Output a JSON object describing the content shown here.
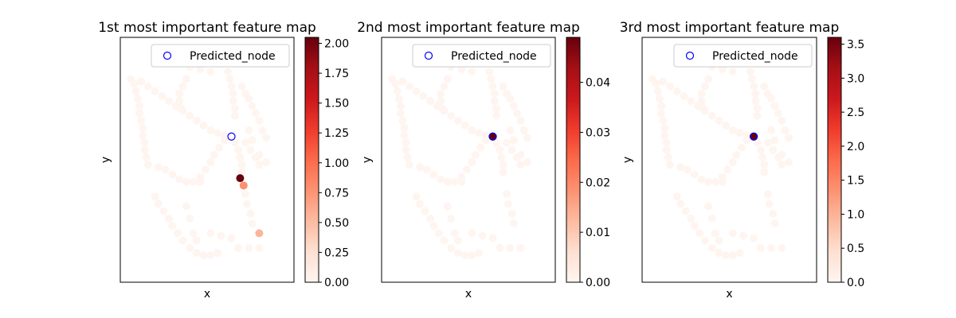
{
  "chart_data": [
    {
      "type": "scatter",
      "title": "1st most important feature map",
      "xlabel": "x",
      "ylabel": "y",
      "legend": {
        "label": "Predicted_node",
        "placement": "top-right"
      },
      "colorbar": {
        "colormap": "Reds",
        "range": [
          0,
          2.05
        ],
        "ticks": [
          "0.00",
          "0.25",
          "0.50",
          "0.75",
          "1.00",
          "1.25",
          "1.50",
          "1.75",
          "2.00"
        ]
      },
      "predicted_node": {
        "x": 0.64,
        "y": 0.595
      },
      "highlight_points": [
        {
          "x": 0.69,
          "y": 0.425,
          "value": 2.05
        },
        {
          "x": 0.71,
          "y": 0.395,
          "value": 0.78
        },
        {
          "x": 0.8,
          "y": 0.2,
          "value": 0.55
        }
      ]
    },
    {
      "type": "scatter",
      "title": "2nd most important feature map",
      "xlabel": "x",
      "ylabel": "y",
      "legend": {
        "label": "Predicted_node",
        "placement": "top-right"
      },
      "colorbar": {
        "colormap": "Reds",
        "range": [
          0,
          0.049
        ],
        "ticks": [
          "0.00",
          "0.01",
          "0.02",
          "0.03",
          "0.04"
        ]
      },
      "predicted_node": {
        "x": 0.64,
        "y": 0.595
      },
      "highlight_points": [
        {
          "x": 0.64,
          "y": 0.595,
          "value": 0.049
        }
      ]
    },
    {
      "type": "scatter",
      "title": "3rd most important feature map",
      "xlabel": "x",
      "ylabel": "y",
      "legend": {
        "label": "Predicted_node",
        "placement": "top-right"
      },
      "colorbar": {
        "colormap": "Reds",
        "range": [
          0,
          3.6
        ],
        "ticks": [
          "0.0",
          "0.5",
          "1.0",
          "1.5",
          "2.0",
          "2.5",
          "3.0",
          "3.5"
        ]
      },
      "predicted_node": {
        "x": 0.64,
        "y": 0.595
      },
      "highlight_points": [
        {
          "x": 0.64,
          "y": 0.595,
          "value": 3.6
        }
      ]
    }
  ],
  "base_nodes": {
    "value": 0,
    "points": [
      [
        0.06,
        0.83
      ],
      [
        0.08,
        0.81
      ],
      [
        0.09,
        0.78
      ],
      [
        0.1,
        0.75
      ],
      [
        0.11,
        0.72
      ],
      [
        0.11,
        0.69
      ],
      [
        0.12,
        0.66
      ],
      [
        0.13,
        0.63
      ],
      [
        0.13,
        0.6
      ],
      [
        0.14,
        0.57
      ],
      [
        0.14,
        0.54
      ],
      [
        0.15,
        0.51
      ],
      [
        0.16,
        0.48
      ],
      [
        0.12,
        0.82
      ],
      [
        0.16,
        0.8
      ],
      [
        0.2,
        0.78
      ],
      [
        0.24,
        0.76
      ],
      [
        0.28,
        0.74
      ],
      [
        0.32,
        0.72
      ],
      [
        0.36,
        0.7
      ],
      [
        0.4,
        0.68
      ],
      [
        0.44,
        0.66
      ],
      [
        0.48,
        0.64
      ],
      [
        0.52,
        0.62
      ],
      [
        0.56,
        0.61
      ],
      [
        0.6,
        0.6
      ],
      [
        0.66,
        0.57
      ],
      [
        0.68,
        0.54
      ],
      [
        0.69,
        0.51
      ],
      [
        0.7,
        0.48
      ],
      [
        0.7,
        0.45
      ],
      [
        0.72,
        0.57
      ],
      [
        0.75,
        0.54
      ],
      [
        0.78,
        0.51
      ],
      [
        0.8,
        0.48
      ],
      [
        0.6,
        0.58
      ],
      [
        0.57,
        0.55
      ],
      [
        0.54,
        0.52
      ],
      [
        0.52,
        0.49
      ],
      [
        0.49,
        0.46
      ],
      [
        0.46,
        0.43
      ],
      [
        0.22,
        0.47
      ],
      [
        0.26,
        0.46
      ],
      [
        0.3,
        0.44
      ],
      [
        0.34,
        0.42
      ],
      [
        0.38,
        0.41
      ],
      [
        0.42,
        0.41
      ],
      [
        0.46,
        0.41
      ],
      [
        0.2,
        0.35
      ],
      [
        0.22,
        0.32
      ],
      [
        0.25,
        0.29
      ],
      [
        0.28,
        0.26
      ],
      [
        0.3,
        0.23
      ],
      [
        0.33,
        0.2
      ],
      [
        0.36,
        0.17
      ],
      [
        0.4,
        0.14
      ],
      [
        0.44,
        0.12
      ],
      [
        0.48,
        0.11
      ],
      [
        0.52,
        0.11
      ],
      [
        0.56,
        0.12
      ],
      [
        0.38,
        0.31
      ],
      [
        0.4,
        0.26
      ],
      [
        0.42,
        0.2
      ],
      [
        0.44,
        0.17
      ],
      [
        0.52,
        0.2
      ],
      [
        0.58,
        0.19
      ],
      [
        0.64,
        0.18
      ],
      [
        0.68,
        0.14
      ],
      [
        0.74,
        0.14
      ],
      [
        0.8,
        0.14
      ],
      [
        0.72,
        0.36
      ],
      [
        0.73,
        0.32
      ],
      [
        0.75,
        0.28
      ],
      [
        0.76,
        0.24
      ],
      [
        0.4,
        0.88
      ],
      [
        0.46,
        0.87
      ],
      [
        0.52,
        0.86
      ],
      [
        0.62,
        0.86
      ],
      [
        0.63,
        0.83
      ],
      [
        0.64,
        0.8
      ],
      [
        0.65,
        0.77
      ],
      [
        0.65,
        0.74
      ],
      [
        0.66,
        0.71
      ],
      [
        0.66,
        0.68
      ],
      [
        0.7,
        0.8
      ],
      [
        0.72,
        0.77
      ],
      [
        0.74,
        0.75
      ],
      [
        0.76,
        0.72
      ],
      [
        0.78,
        0.69
      ],
      [
        0.8,
        0.66
      ],
      [
        0.82,
        0.62
      ],
      [
        0.84,
        0.59
      ],
      [
        0.74,
        0.62
      ],
      [
        0.76,
        0.58
      ],
      [
        0.8,
        0.52
      ],
      [
        0.84,
        0.49
      ],
      [
        0.38,
        0.83
      ],
      [
        0.36,
        0.8
      ],
      [
        0.34,
        0.77
      ],
      [
        0.34,
        0.74
      ],
      [
        0.35,
        0.71
      ]
    ]
  }
}
